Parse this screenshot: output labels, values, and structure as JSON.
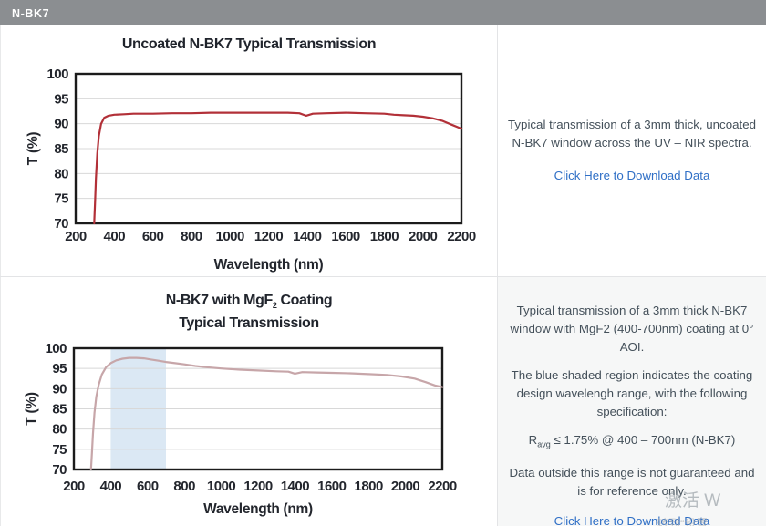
{
  "header": {
    "title": "N-BK7"
  },
  "row1": {
    "description": "Typical transmission of a 3mm thick, uncoated N-BK7 window across the UV – NIR spectra.",
    "link": "Click Here to Download Data"
  },
  "row2": {
    "chart_title": {
      "pre": "N-BK7 with MgF",
      "sub": "2",
      "post": " Coating",
      "line2": "Typical Transmission"
    },
    "p1": "Typical transmission of a 3mm thick N-BK7 window with MgF2 (400-700nm) coating at 0° AOI.",
    "p2": "The blue shaded region indicates the coating design wavelengh range, with the following specification:",
    "spec": {
      "pre": "R",
      "sub": "avg",
      "post": " ≤ 1.75% @ 400 – 700nm (N-BK7)"
    },
    "p3": "Data outside this range is not guaranteed and is for reference only.",
    "link": "Click Here to Download Data"
  },
  "watermark": {
    "line1": "激活 W",
    "line2": "转到“设置"
  },
  "colors": {
    "header_bg": "#8b8e91",
    "uncoated_curve": "#b23038",
    "coated_curve": "#c7a6a9",
    "band": "#dbe8f4",
    "grid": "#d8d8d8",
    "link": "#2f6fc6"
  },
  "chart_data": [
    {
      "type": "line",
      "title": "Uncoated N-BK7 Typical Transmission",
      "xlabel": "Wavelength (nm)",
      "ylabel": "T (%)",
      "xlim": [
        200,
        2200
      ],
      "ylim": [
        70,
        100
      ],
      "xticks": [
        200,
        400,
        600,
        800,
        1000,
        1200,
        1400,
        1600,
        1800,
        2000,
        2200
      ],
      "yticks": [
        70,
        75,
        80,
        85,
        90,
        95,
        100
      ],
      "grid": "horizontal",
      "legend": "none",
      "series": [
        {
          "name": "Uncoated N-BK7 3mm",
          "color": "#b23038",
          "x": [
            296,
            300,
            305,
            312,
            320,
            332,
            348,
            370,
            400,
            450,
            500,
            600,
            700,
            800,
            900,
            1000,
            1100,
            1200,
            1300,
            1360,
            1395,
            1430,
            1500,
            1600,
            1700,
            1800,
            1850,
            1900,
            1950,
            2000,
            2050,
            2100,
            2150,
            2200
          ],
          "y": [
            70,
            74,
            79,
            84,
            87.5,
            90,
            91.2,
            91.6,
            91.8,
            91.9,
            92.0,
            92.0,
            92.1,
            92.1,
            92.2,
            92.2,
            92.2,
            92.2,
            92.2,
            92.1,
            91.6,
            92.0,
            92.1,
            92.2,
            92.1,
            92.0,
            91.8,
            91.7,
            91.6,
            91.4,
            91.1,
            90.6,
            89.8,
            89.0
          ]
        }
      ]
    },
    {
      "type": "line",
      "title": "N-BK7 with MgF2 Coating Typical Transmission",
      "xlabel": "Wavelength (nm)",
      "ylabel": "T (%)",
      "xlim": [
        200,
        2200
      ],
      "ylim": [
        70,
        100
      ],
      "xticks": [
        200,
        400,
        600,
        800,
        1000,
        1200,
        1400,
        1600,
        1800,
        2000,
        2200
      ],
      "yticks": [
        70,
        75,
        80,
        85,
        90,
        95,
        100
      ],
      "grid": "horizontal",
      "legend": "none",
      "band": {
        "x0": 400,
        "x1": 700,
        "color": "#dbe8f4",
        "label": "coating design wavelength range"
      },
      "series": [
        {
          "name": "N-BK7 with MgF2 (400-700nm) coating",
          "color": "#c7a6a9",
          "x": [
            293,
            298,
            304,
            312,
            322,
            335,
            352,
            375,
            400,
            430,
            465,
            500,
            540,
            580,
            620,
            660,
            700,
            750,
            800,
            860,
            920,
            1000,
            1100,
            1200,
            1300,
            1365,
            1400,
            1440,
            1520,
            1600,
            1700,
            1800,
            1900,
            1980,
            2050,
            2110,
            2160,
            2200
          ],
          "y": [
            70,
            74,
            79,
            84,
            88,
            91,
            93.5,
            95.3,
            96.3,
            97.0,
            97.4,
            97.6,
            97.6,
            97.5,
            97.2,
            96.9,
            96.6,
            96.3,
            96.0,
            95.6,
            95.3,
            95.0,
            94.7,
            94.5,
            94.3,
            94.2,
            93.7,
            94.1,
            94.0,
            93.9,
            93.8,
            93.6,
            93.4,
            93.0,
            92.5,
            91.6,
            90.8,
            90.4
          ]
        }
      ]
    }
  ]
}
